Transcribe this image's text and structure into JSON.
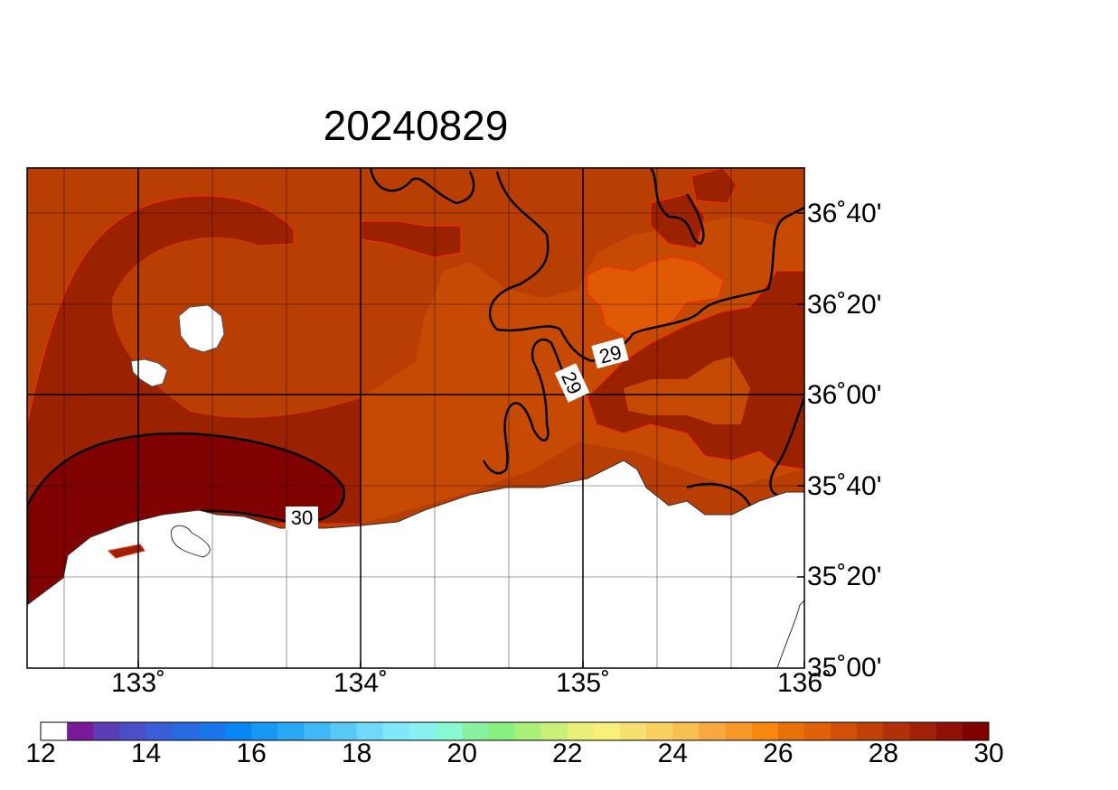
{
  "title": "20240829",
  "map": {
    "lat_ticks": [
      "36˚40'",
      "36˚20'",
      "36˚00'",
      "35˚40'",
      "35˚20'",
      "35˚00'"
    ],
    "lon_ticks": [
      "133˚",
      "134˚",
      "135˚",
      "136˚"
    ],
    "contour_labels": [
      "29",
      "29",
      "30"
    ],
    "colors": {
      "c26": "#e85c05",
      "c27": "#d44c06",
      "c28": "#b83e03",
      "c29": "#9b2201",
      "c30": "#7f0100",
      "land": "#ffffff"
    }
  },
  "colorbar": {
    "tick_labels": [
      "12",
      "14",
      "16",
      "18",
      "20",
      "22",
      "24",
      "26",
      "28",
      "30"
    ],
    "colors": [
      "#ffffff",
      "#7a1a9a",
      "#5b3db5",
      "#4a4fc8",
      "#3a5dd8",
      "#2a6ae0",
      "#1a75e8",
      "#0a85f5",
      "#1898f5",
      "#2aa8f5",
      "#40b8f5",
      "#58c8f5",
      "#70d8f8",
      "#80e8f8",
      "#88f0f0",
      "#88f8d0",
      "#88f0a0",
      "#88f080",
      "#a8f078",
      "#c8f078",
      "#e8f078",
      "#f8f078",
      "#f8e070",
      "#f8d060",
      "#f8c050",
      "#f8a840",
      "#f89828",
      "#f88810",
      "#e87008",
      "#e06008",
      "#d05008",
      "#c04008",
      "#b03008",
      "#a02008",
      "#901008",
      "#800000"
    ]
  }
}
